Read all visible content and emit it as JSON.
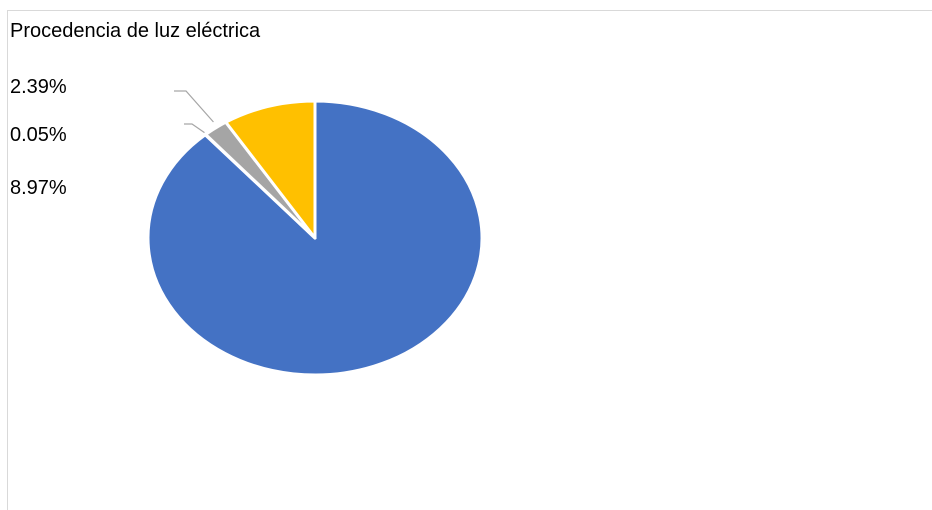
{
  "chart_data": {
    "type": "pie",
    "title": "Procedencia de luz eléctrica",
    "slices": [
      {
        "value": 88.59,
        "color": "#4472c4"
      },
      {
        "value": 0.05,
        "color": "#ed7d31"
      },
      {
        "value": 2.39,
        "color": "#a5a5a5"
      },
      {
        "value": 8.97,
        "color": "#ffc000"
      }
    ],
    "data_labels": [
      "2.39%",
      "0.05%",
      "8.97%"
    ],
    "start_angle_deg": 0,
    "direction": "clockwise",
    "legend": "none"
  }
}
